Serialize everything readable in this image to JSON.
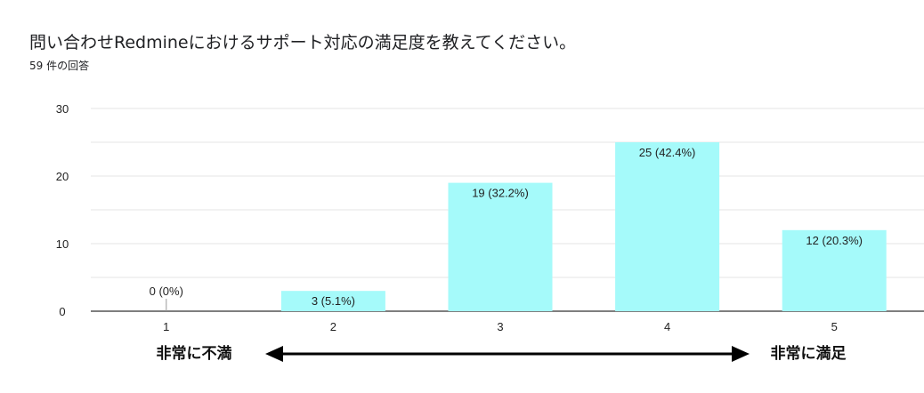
{
  "title": "問い合わせRedmineにおけるサポート対応の満足度を教えてください。",
  "subtitle": "59 件の回答",
  "colors": {
    "bar": "#a5fafa",
    "grid": "#e6e6e6",
    "axis": "#333333"
  },
  "chart_data": {
    "type": "bar",
    "categories": [
      "1",
      "2",
      "3",
      "4",
      "5"
    ],
    "values": [
      0,
      3,
      19,
      25,
      12
    ],
    "data_labels": [
      "0 (0%)",
      "3 (5.1%)",
      "19 (32.2%)",
      "25 (42.4%)",
      "12 (20.3%)"
    ],
    "ylim": [
      0,
      30
    ],
    "yticks": [
      "0",
      "10",
      "20",
      "30"
    ],
    "grid": true,
    "annotations": {
      "left": "非常に不満",
      "right": "非常に満足"
    }
  }
}
